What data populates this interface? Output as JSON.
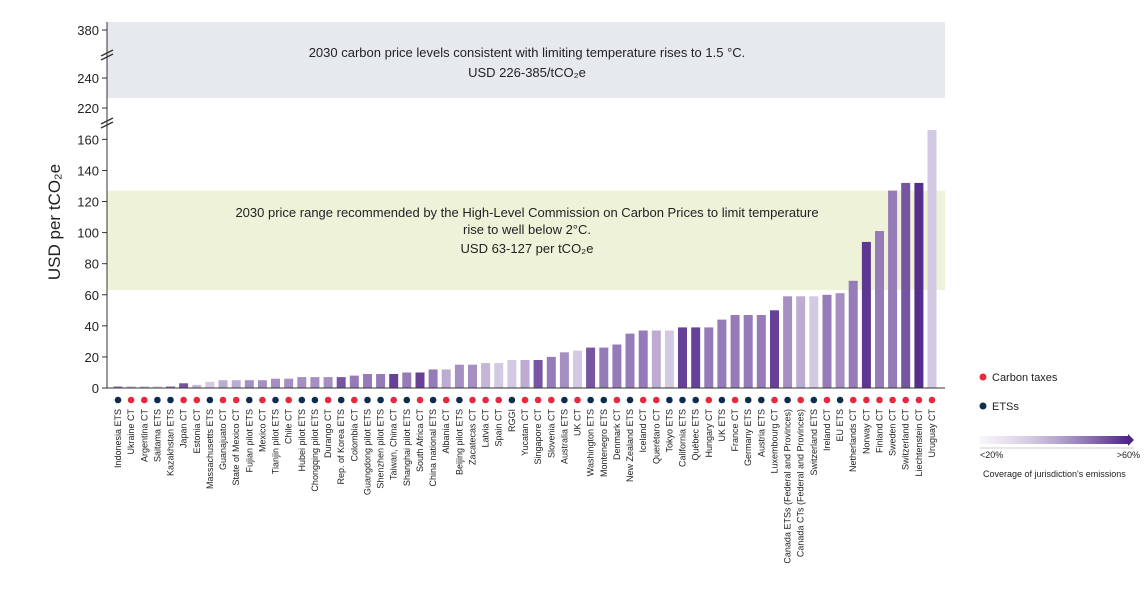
{
  "chart_data": {
    "type": "bar",
    "ylabel": "USD per tCO₂e",
    "yticks": [
      0,
      20,
      40,
      60,
      80,
      100,
      120,
      140,
      160,
      220,
      240,
      380
    ],
    "categories": [
      "Indonesia ETS",
      "Ukraine CT",
      "Argentina CT",
      "Saitama ETS",
      "Kazakhstan ETS",
      "Japan CT",
      "Estonia CT",
      "Massachusetts ETS",
      "Guanajuato CT",
      "State of Mexico CT",
      "Fujian pilot ETS",
      "Mexico CT",
      "Tianjin pilot ETS",
      "Chile CT",
      "Hubei pilot ETS",
      "Chongqing pilot ETS",
      "Durango CT",
      "Rep. of Korea ETS",
      "Colombia CT",
      "Guangdong pilot ETS",
      "Shenzhen pilot ETS",
      "Taiwan, China CT",
      "Shanghai pilot ETS",
      "South Africa CT",
      "China national ETS",
      "Albania CT",
      "Beijing pilot ETS",
      "Zacatecas CT",
      "Latvia CT",
      "Spain CT",
      "RGGI",
      "Yucatan CT",
      "Singapore CT",
      "Slovenia CT",
      "Australia ETS",
      "UK CT",
      "Washington ETS",
      "Montenegro ETS",
      "Denmark CT",
      "New Zealand ETS",
      "Iceland CT",
      "Querétaro CT",
      "Tokyo ETS",
      "California ETS",
      "Québec ETS",
      "Hungary CT",
      "UK ETS",
      "France CT",
      "Germany ETS",
      "Austria ETS",
      "Luxembourg CT",
      "Canada ETSs (Federal and Provinces)",
      "Canada CTs (Federal and Provinces)",
      "Switzerland ETS",
      "Ireland CT",
      "EU ETS",
      "Netherlands CT",
      "Norway CT",
      "Finland CT",
      "Sweden CT",
      "Switzerland CT",
      "Liechtenstein CT",
      "Uruguay CT"
    ],
    "values": [
      1,
      1,
      1,
      1,
      1,
      3,
      2,
      4,
      5,
      5,
      5,
      5,
      6,
      6,
      7,
      7,
      7,
      7,
      8,
      9,
      9,
      9,
      10,
      10,
      12,
      12,
      15,
      15,
      16,
      16,
      18,
      18,
      18,
      20,
      23,
      24,
      26,
      26,
      28,
      35,
      37,
      37,
      37,
      39,
      39,
      39,
      44,
      47,
      47,
      47,
      50,
      59,
      59,
      59,
      60,
      61,
      69,
      94,
      101,
      127,
      132,
      132,
      166
    ],
    "instrument": [
      "ets",
      "ct",
      "ct",
      "ets",
      "ets",
      "ct",
      "ct",
      "ets",
      "ct",
      "ct",
      "ets",
      "ct",
      "ets",
      "ct",
      "ets",
      "ets",
      "ct",
      "ets",
      "ct",
      "ets",
      "ets",
      "ct",
      "ets",
      "ct",
      "ets",
      "ct",
      "ets",
      "ct",
      "ct",
      "ct",
      "ets",
      "ct",
      "ct",
      "ct",
      "ets",
      "ct",
      "ets",
      "ets",
      "ct",
      "ets",
      "ct",
      "ct",
      "ets",
      "ets",
      "ets",
      "ct",
      "ets",
      "ct",
      "ets",
      "ets",
      "ct",
      "ets",
      "ct",
      "ets",
      "ct",
      "ets",
      "ct",
      "ct",
      "ct",
      "ct",
      "ct",
      "ct",
      "ct"
    ],
    "coverage": [
      0.55,
      0.25,
      0.25,
      0.15,
      0.55,
      0.75,
      0.25,
      0.15,
      0.3,
      0.3,
      0.45,
      0.45,
      0.45,
      0.45,
      0.45,
      0.45,
      0.45,
      0.75,
      0.55,
      0.55,
      0.55,
      0.85,
      0.55,
      0.85,
      0.55,
      0.3,
      0.45,
      0.45,
      0.25,
      0.15,
      0.15,
      0.3,
      0.75,
      0.55,
      0.45,
      0.15,
      0.75,
      0.55,
      0.55,
      0.55,
      0.55,
      0.3,
      0.15,
      0.85,
      0.85,
      0.55,
      0.55,
      0.55,
      0.55,
      0.55,
      0.85,
      0.45,
      0.3,
      0.15,
      0.55,
      0.45,
      0.55,
      0.9,
      0.55,
      0.55,
      0.75,
      0.95,
      0.15
    ],
    "bands": [
      {
        "lines": [
          "2030 carbon price levels consistent with limiting temperature rises to 1.5 °C.",
          "USD 226-385/tCO₂e"
        ],
        "color": "#e6e9ee"
      },
      {
        "lines": [
          "2030 price range recommended by the High-Level Commission on Carbon Prices to limit temperature",
          "rise to well below 2°C.",
          "USD 63-127 per tCO₂e"
        ],
        "color": "#eef2d9",
        "range": [
          63,
          127
        ]
      }
    ],
    "legend": {
      "carbon_taxes": "Carbon taxes",
      "etss": "ETSs",
      "gradient_low": "<20%",
      "gradient_high": ">60%",
      "gradient_caption": "Coverage of jurisdiction's emissions"
    },
    "colors": {
      "carbon_tax_dot": "#e8283c",
      "ets_dot": "#0d2d4f",
      "bar_light": "#ece6f2",
      "bar_dark": "#4e2487",
      "axis": "#333333"
    }
  }
}
